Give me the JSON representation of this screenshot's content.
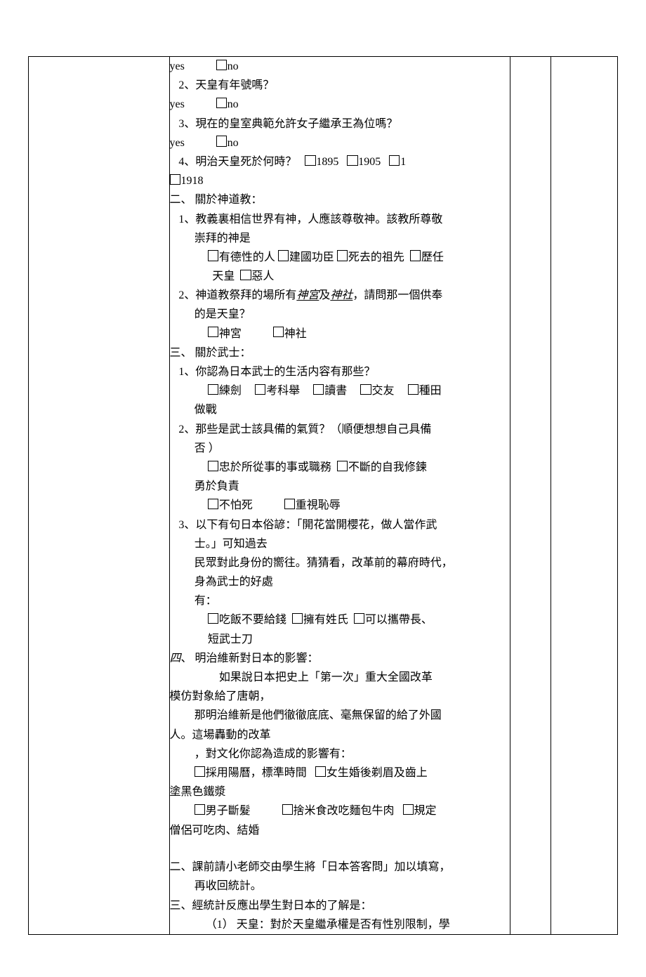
{
  "yes_no_lines": [
    {
      "prefix": "yes",
      "gap": true,
      "opt": "no"
    }
  ],
  "q_top": [
    "2、天皇有年號嗎？",
    "3、現在的皇室典範允許女子繼承王為位嗎？"
  ],
  "q4_text": "4、明治天皇死於何時？",
  "q4_opts": [
    "1895",
    "1905",
    "1"
  ],
  "q4_extra": "1918",
  "sec2_head": "二、  關於神道教：",
  "sec2_q1a": "1、教義裏相信世界有神，人應該尊敬神。該教所尊敬",
  "sec2_q1b": "崇拜的神是",
  "sec2_q1_opts_l1": [
    "有德性的人",
    "建國功臣",
    "死去的祖先",
    "歷任"
  ],
  "sec2_q1_opts_l2a": "天皇",
  "sec2_q1_opts_l2b": "惡人",
  "sec2_q2a": "2、神道教祭拜的場所有",
  "sec2_q2_u1": "神宮",
  "sec2_q2_mid": "及",
  "sec2_q2_u2": "神社",
  "sec2_q2b": "，請問那一個供奉",
  "sec2_q2c": "的是天皇？",
  "sec2_q2_opts": [
    "神宮",
    "神社"
  ],
  "sec3_head": "三、  關於武士：",
  "sec3_q1": "1、你認為日本武士的生活内容有那些？",
  "sec3_q1_opts": [
    "練劍",
    "考科舉",
    "讀書",
    "交友",
    "種田"
  ],
  "sec3_q1_tail": "做戰",
  "sec3_q2a": "2、那些是武士該具備的氣質？（順便想想自己具備",
  "sec3_q2b": "否  ）",
  "sec3_q2_opts_l1": [
    "忠於所從事的事或職務",
    "不斷的自我修鍊"
  ],
  "sec3_q2_tail1": "勇於負責",
  "sec3_q2_opts_l2": [
    "不怕死",
    "重視恥辱"
  ],
  "sec3_q3a": "3、以下有句日本俗諺：「開花當開櫻花，做人當作武",
  "sec3_q3b": "士。」可知過去",
  "sec3_q3c": "民眾對此身份的嚮往。猜猜看，改革前的幕府時代，",
  "sec3_q3d": "身為武士的好處",
  "sec3_q3e": "有：",
  "sec3_q3_opts": [
    "吃飯不要給錢",
    "擁有姓氏",
    "可以攜帶長、"
  ],
  "sec3_q3_tail": "短武士刀",
  "sec4_num": "四",
  "sec4_head_rest": "、  明治維新對日本的影響：",
  "sec4_p1": "如果說日本把史上「第一次」重大全國改革",
  "sec4_p1b": "模仿對象給了唐朝，",
  "sec4_p2": "那明治維新是他們徹徹底底、毫無保留的給了外國",
  "sec4_p2b": "人。這場轟動的改革",
  "sec4_p3": "，對文化你認為造成的影響有：",
  "sec4_opts_l1": [
    "採用陽曆，標準時間",
    "女生婚後剃眉及齒上"
  ],
  "sec4_tail1": "塗黑色鐵漿",
  "sec4_opts_l2": [
    "男子斷髮",
    "捨米食改吃麵包牛肉",
    "規定"
  ],
  "sec4_tail2": "僧侶可吃肉、結婚",
  "outline2a": "二、課前請小老師交由學生將「日本答客問」加以填寫，",
  "outline2b": "再收回統計。",
  "outline3": "三、經統計反應出學生對日本的了解是：",
  "outline3_1": "（1）  天皇：對於天皇繼承權是否有性別限制，學"
}
